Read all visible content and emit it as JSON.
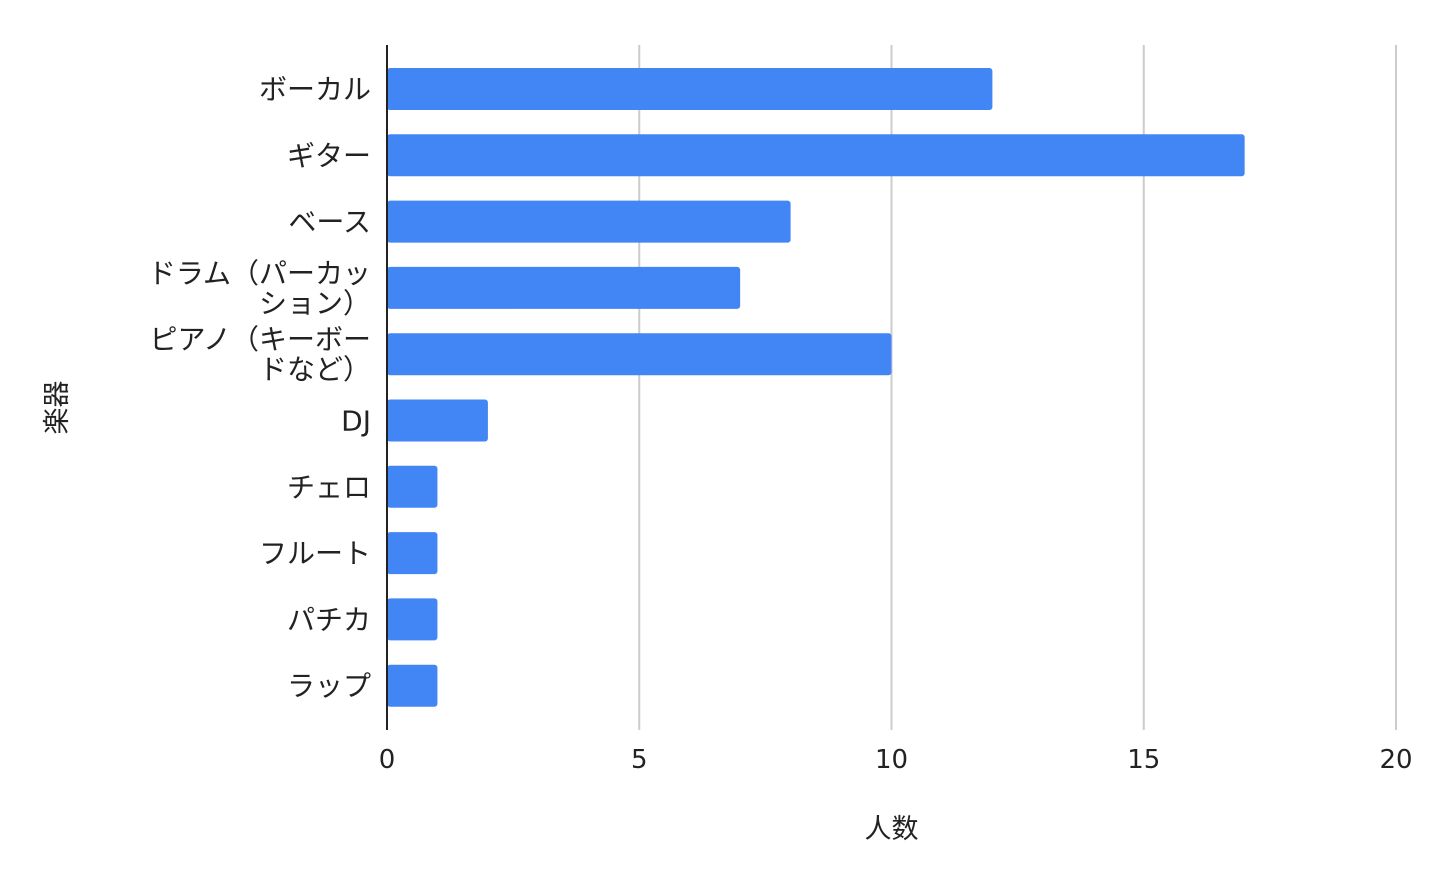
{
  "chart_data": {
    "type": "bar",
    "orientation": "horizontal",
    "categories": [
      [
        "ボーカル"
      ],
      [
        "ギター"
      ],
      [
        "ベース"
      ],
      [
        "ドラム（パーカッ",
        "ション）"
      ],
      [
        "ピアノ（キーボー",
        "ドなど）"
      ],
      [
        "DJ"
      ],
      [
        "チェロ"
      ],
      [
        "フルート"
      ],
      [
        "パチカ"
      ],
      [
        "ラップ"
      ]
    ],
    "values": [
      12,
      17,
      8,
      7,
      10,
      2,
      1,
      1,
      1,
      1
    ],
    "xlabel": "人数",
    "ylabel": "楽器",
    "xlim": [
      0,
      20
    ],
    "xticks": [
      0,
      5,
      10,
      15,
      20
    ],
    "xtick_labels": [
      "0",
      "5",
      "10",
      "15",
      "20"
    ],
    "grid": "vertical",
    "bar_color": "#4285f4",
    "grid_color": "#cccccc",
    "axis_color": "#222222"
  }
}
